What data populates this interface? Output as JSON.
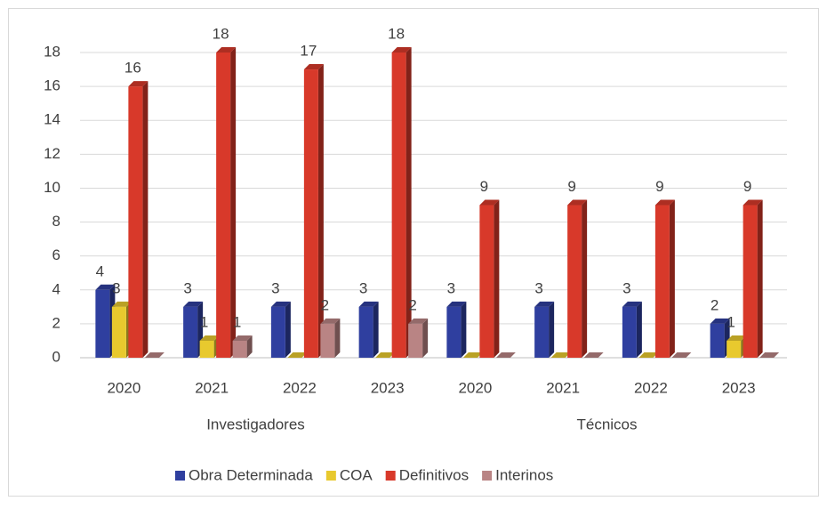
{
  "chart_data": {
    "type": "bar3d",
    "categories": [
      "2020",
      "2021",
      "2022",
      "2023",
      "2020",
      "2021",
      "2022",
      "2023"
    ],
    "group_labels": [
      "Investigadores",
      "Técnicos"
    ],
    "series": [
      {
        "name": "Obra Determinada",
        "color": "#2f3f9f",
        "values": [
          4,
          3,
          3,
          3,
          3,
          3,
          3,
          2
        ],
        "value_labels": [
          "4",
          "3",
          "3",
          "3",
          "3",
          "3",
          "3",
          "2"
        ]
      },
      {
        "name": "COA",
        "color": "#e8c92e",
        "values": [
          3,
          1,
          0,
          0,
          0,
          0,
          0,
          1
        ],
        "value_labels": [
          "3",
          "1",
          null,
          null,
          null,
          null,
          null,
          "1"
        ]
      },
      {
        "name": "Definitivos",
        "color": "#d8392a",
        "values": [
          16,
          18,
          17,
          18,
          9,
          9,
          9,
          9
        ],
        "value_labels": [
          "16",
          "18",
          "17",
          "18",
          "9",
          "9",
          "9",
          "9"
        ]
      },
      {
        "name": "Interinos",
        "color": "#b98484",
        "values": [
          0,
          1,
          2,
          2,
          0,
          0,
          0,
          0
        ],
        "value_labels": [
          null,
          "1",
          "2",
          "2",
          null,
          null,
          null,
          null
        ]
      }
    ],
    "ylim": [
      0,
      18
    ],
    "yticks": [
      0,
      2,
      4,
      6,
      8,
      10,
      12,
      14,
      16,
      18
    ],
    "grid": true,
    "legend": "bottom"
  }
}
